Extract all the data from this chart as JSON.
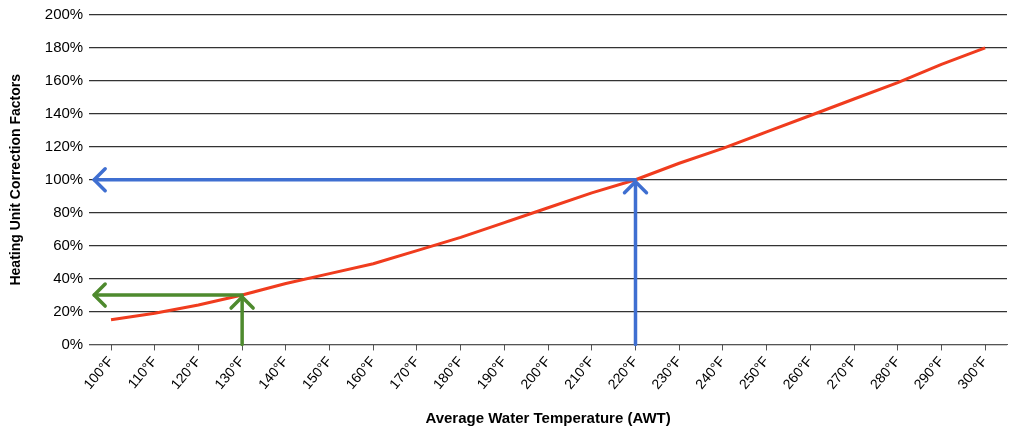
{
  "chart_data": {
    "type": "line",
    "xlabel": "Average Water Temperature (AWT)",
    "ylabel": "Heating Unit Correction Factors",
    "categories": [
      "100°F",
      "110°F",
      "120°F",
      "130°F",
      "140°F",
      "150°F",
      "160°F",
      "170°F",
      "180°F",
      "190°F",
      "200°F",
      "210°F",
      "220°F",
      "230°F",
      "240°F",
      "250°F",
      "260°F",
      "270°F",
      "280°F",
      "290°F",
      "300°F"
    ],
    "series": [
      {
        "color": "#f03c1e",
        "values": [
          15,
          19,
          24,
          30,
          37,
          43,
          49,
          57,
          65,
          74,
          83,
          92,
          100,
          110,
          119,
          129,
          139,
          149,
          159,
          170,
          180
        ]
      }
    ],
    "ylim": [
      0,
      200
    ],
    "yticks": [
      {
        "value": 0,
        "label": "0%"
      },
      {
        "value": 20,
        "label": "20%"
      },
      {
        "value": 40,
        "label": "40%"
      },
      {
        "value": 60,
        "label": "60%"
      },
      {
        "value": 80,
        "label": "80%"
      },
      {
        "value": 100,
        "label": "100%"
      },
      {
        "value": 120,
        "label": "120%"
      },
      {
        "value": 140,
        "label": "140%"
      },
      {
        "value": 160,
        "label": "160%"
      },
      {
        "value": 180,
        "label": "180%"
      },
      {
        "value": 200,
        "label": "200%"
      }
    ],
    "ref_lines": [
      {
        "axis": "y",
        "value": 30,
        "color": "#4e8a2e"
      },
      {
        "axis": "y",
        "value": 100,
        "color": "#3f6fd1"
      }
    ],
    "grid": "y",
    "legend": false,
    "marker": "none",
    "line_style": "solid"
  }
}
